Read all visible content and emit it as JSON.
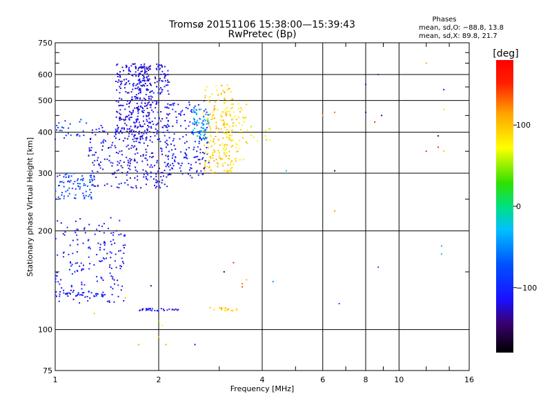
{
  "chart_data": {
    "type": "scatter",
    "title": "Tromsø 20151106 15:38:00—15:39:43",
    "subtitle": "RwPretec (Bp)",
    "xlabel": "Frequency [MHz]",
    "ylabel": "Stationary phase Virtual Height [km]",
    "x_scale": "log",
    "y_scale": "log",
    "xlim": [
      1,
      16
    ],
    "ylim": [
      75,
      750
    ],
    "x_ticks": [
      1,
      2,
      4,
      6,
      8,
      10,
      16
    ],
    "x_tick_labels": [
      "1",
      "2",
      "4",
      "6",
      "8",
      "10",
      "16"
    ],
    "y_ticks": [
      75,
      100,
      200,
      300,
      400,
      500,
      600,
      750
    ],
    "y_tick_labels": [
      "75",
      "100",
      "200",
      "300",
      "400",
      "500",
      "600",
      "750"
    ],
    "grid": true,
    "phase_stats": {
      "heading": "Phases",
      "line_o": "mean, sd,O: −88.8, 13.8",
      "line_x": "mean, sd,X:  89.8, 21.7"
    },
    "colorbar": {
      "label": "[deg]",
      "range": [
        -180,
        180
      ],
      "ticks": [
        100,
        0,
        -100
      ],
      "tick_labels": [
        "100",
        "0",
        "−100"
      ]
    },
    "clusters": [
      {
        "x": [
          1.0,
          1.6
        ],
        "y": [
          120,
          220
        ],
        "phase": -110,
        "n": 180
      },
      {
        "x": [
          1.0,
          1.3
        ],
        "y": [
          250,
          300
        ],
        "phase": -80,
        "n": 80
      },
      {
        "x": [
          1.0,
          1.25
        ],
        "y": [
          380,
          440
        ],
        "phase": -90,
        "n": 25
      },
      {
        "x": [
          1.25,
          1.75
        ],
        "y": [
          270,
          420
        ],
        "phase": -115,
        "n": 150
      },
      {
        "x": [
          1.5,
          1.9
        ],
        "y": [
          380,
          650
        ],
        "phase": -118,
        "n": 260
      },
      {
        "x": [
          1.7,
          2.15
        ],
        "y": [
          270,
          650
        ],
        "phase": -118,
        "n": 280
      },
      {
        "x": [
          2.1,
          2.8
        ],
        "y": [
          290,
          500
        ],
        "phase": -112,
        "n": 160
      },
      {
        "x": [
          2.5,
          2.8
        ],
        "y": [
          380,
          470
        ],
        "phase": -40,
        "n": 70
      },
      {
        "x": [
          2.7,
          3.3
        ],
        "y": [
          300,
          560
        ],
        "phase": 95,
        "n": 170
      },
      {
        "x": [
          3.1,
          3.6
        ],
        "y": [
          320,
          500
        ],
        "phase": 85,
        "n": 70
      },
      {
        "x": [
          3.6,
          4.3
        ],
        "y": [
          370,
          420
        ],
        "phase": 60,
        "n": 12
      },
      {
        "x": [
          1.75,
          2.3
        ],
        "y": [
          114,
          116
        ],
        "phase": -115,
        "n": 30
      },
      {
        "x": [
          2.8,
          3.4
        ],
        "y": [
          114,
          117
        ],
        "phase": 95,
        "n": 18
      },
      {
        "x": [
          1.0,
          1.4
        ],
        "y": [
          126,
          130
        ],
        "phase": -110,
        "n": 30
      }
    ],
    "sparse_points": [
      {
        "x": 6.5,
        "y": 230,
        "phase": 120
      },
      {
        "x": 6.5,
        "y": 460,
        "phase": 130
      },
      {
        "x": 6.0,
        "y": 450,
        "phase": 110
      },
      {
        "x": 8.0,
        "y": 560,
        "phase": -120
      },
      {
        "x": 8.0,
        "y": 460,
        "phase": -130
      },
      {
        "x": 8.7,
        "y": 600,
        "phase": -90
      },
      {
        "x": 8.9,
        "y": 450,
        "phase": -140
      },
      {
        "x": 8.5,
        "y": 430,
        "phase": 150
      },
      {
        "x": 12.0,
        "y": 650,
        "phase": 110
      },
      {
        "x": 12.0,
        "y": 350,
        "phase": 150
      },
      {
        "x": 13.0,
        "y": 360,
        "phase": 160
      },
      {
        "x": 13.0,
        "y": 390,
        "phase": -150
      },
      {
        "x": 13.5,
        "y": 540,
        "phase": -120
      },
      {
        "x": 13.5,
        "y": 470,
        "phase": 90
      },
      {
        "x": 13.5,
        "y": 350,
        "phase": 100
      },
      {
        "x": 13.3,
        "y": 180,
        "phase": -30
      },
      {
        "x": 13.3,
        "y": 170,
        "phase": -30
      },
      {
        "x": 8.7,
        "y": 155,
        "phase": -70
      },
      {
        "x": 6.7,
        "y": 120,
        "phase": -70
      },
      {
        "x": 6.5,
        "y": 305,
        "phase": -160
      },
      {
        "x": 4.3,
        "y": 140,
        "phase": -50
      },
      {
        "x": 4.7,
        "y": 305,
        "phase": -30
      },
      {
        "x": 1.75,
        "y": 90,
        "phase": 110
      },
      {
        "x": 2.0,
        "y": 95,
        "phase": 100
      },
      {
        "x": 2.1,
        "y": 90,
        "phase": 110
      },
      {
        "x": 2.55,
        "y": 90,
        "phase": -130
      },
      {
        "x": 2.0,
        "y": 106,
        "phase": 40
      },
      {
        "x": 2.05,
        "y": 103,
        "phase": 70
      },
      {
        "x": 1.9,
        "y": 136,
        "phase": -140
      },
      {
        "x": 1.6,
        "y": 125,
        "phase": 100
      },
      {
        "x": 1.3,
        "y": 112,
        "phase": 100
      },
      {
        "x": 3.5,
        "y": 135,
        "phase": 140
      },
      {
        "x": 3.5,
        "y": 138,
        "phase": 130
      },
      {
        "x": 3.6,
        "y": 142,
        "phase": 100
      },
      {
        "x": 3.3,
        "y": 160,
        "phase": 150
      },
      {
        "x": 3.1,
        "y": 150,
        "phase": -150
      }
    ]
  }
}
